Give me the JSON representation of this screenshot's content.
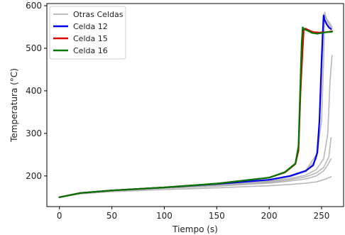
{
  "chart_data": {
    "type": "line",
    "title": "",
    "xlabel": "Tiempo (s)",
    "ylabel": "Temperatura (°C)",
    "xlim": [
      -12,
      271
    ],
    "ylim": [
      128,
      605
    ],
    "xticks": [
      0,
      50,
      100,
      150,
      200,
      250
    ],
    "yticks": [
      200,
      300,
      400,
      500,
      600
    ],
    "grid": false,
    "legend_position": "top-left",
    "series": [
      {
        "name": "Otras Celdas",
        "color": "#aaaaaa",
        "role": "other",
        "lines": [
          {
            "x": [
              0,
              20,
              50,
              100,
              150,
              200,
              220,
              235,
              245,
              252,
              259
            ],
            "y": [
              150,
              158,
              163,
              168,
              172,
              177,
              180,
              183,
              186,
              191,
              198
            ]
          },
          {
            "x": [
              0,
              20,
              50,
              100,
              150,
              200,
              220,
              235,
              245,
              252,
              256,
              259
            ],
            "y": [
              150,
              159,
              165,
              171,
              176,
              183,
              188,
              193,
              200,
              212,
              226,
              240
            ]
          },
          {
            "x": [
              0,
              20,
              50,
              100,
              150,
              200,
              220,
              235,
              245,
              252,
              257,
              259
            ],
            "y": [
              150,
              159,
              165,
              172,
              178,
              185,
              191,
              198,
              207,
              220,
              245,
              290
            ]
          },
          {
            "x": [
              0,
              20,
              50,
              100,
              150,
              200,
              220,
              235,
              245,
              252,
              256,
              258,
              260
            ],
            "y": [
              150,
              159,
              166,
              172,
              179,
              187,
              194,
              202,
              215,
              240,
              300,
              420,
              483
            ]
          },
          {
            "x": [
              0,
              20,
              50,
              100,
              150,
              200,
              220,
              235,
              245,
              250,
              252,
              253,
              255,
              258,
              260
            ],
            "y": [
              150,
              159,
              166,
              173,
              180,
              189,
              198,
              210,
              240,
              330,
              470,
              585,
              565,
              552,
              546
            ]
          },
          {
            "x": [
              0,
              20,
              50,
              100,
              150,
              200,
              220,
              235,
              245,
              249,
              251,
              252,
              254,
              258,
              260
            ],
            "y": [
              150,
              159,
              166,
              173,
              181,
              190,
              200,
              213,
              250,
              360,
              500,
              580,
              572,
              558,
              550
            ]
          }
        ]
      },
      {
        "name": "Celda 12",
        "color": "#0000ee",
        "role": "main",
        "lines": [
          {
            "x": [
              0,
              20,
              50,
              100,
              150,
              200,
              220,
              235,
              242,
              246,
              248,
              250,
              251,
              252,
              253,
              255,
              257,
              259
            ],
            "y": [
              150,
              160,
              166,
              173,
              181,
              191,
              200,
              212,
              225,
              255,
              330,
              470,
              530,
              577,
              566,
              556,
              549,
              545
            ]
          }
        ]
      },
      {
        "name": "Celda 15",
        "color": "#dd0000",
        "role": "main",
        "lines": [
          {
            "x": [
              0,
              20,
              50,
              100,
              150,
              200,
              215,
              225,
              228,
              230,
              232,
              233,
              235,
              238,
              242,
              248,
              255,
              260
            ],
            "y": [
              150,
              160,
              166,
              173,
              182,
              196,
              208,
              228,
              260,
              400,
              500,
              545,
              546,
              542,
              538,
              537,
              538,
              540
            ]
          }
        ]
      },
      {
        "name": "Celda 16",
        "color": "#007700",
        "role": "main",
        "lines": [
          {
            "x": [
              0,
              20,
              50,
              100,
              150,
              200,
              215,
              225,
              228,
              230,
              231,
              232,
              234,
              237,
              241,
              246,
              252,
              260
            ],
            "y": [
              150,
              160,
              166,
              173,
              182,
              196,
              209,
              229,
              270,
              430,
              510,
              549,
              544,
              541,
              536,
              534,
              537,
              539
            ]
          }
        ]
      }
    ]
  }
}
